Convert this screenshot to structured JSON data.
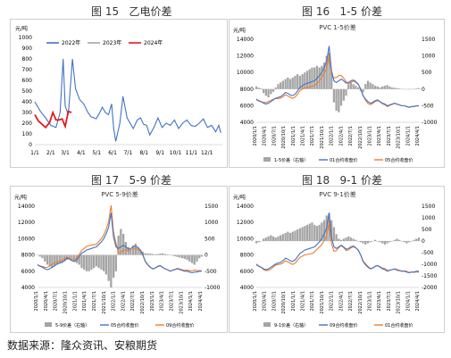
{
  "source_note": "数据来源：隆众资讯、安粮期货",
  "figures": [
    {
      "number": "图 15",
      "caption": "乙电价差"
    },
    {
      "number": "图 16",
      "caption": "1-5 价差"
    },
    {
      "number": "图 17",
      "caption": "5-9 价差"
    },
    {
      "number": "图 18",
      "caption": "9-1 价差"
    }
  ],
  "colors": {
    "blue": "#4472c4",
    "gray": "#a5a5a5",
    "red": "#e31a1c",
    "orange": "#ed7d31"
  },
  "chart_data": [
    {
      "type": "line",
      "title": "",
      "ylabel": "元/吨",
      "ylim": [
        0,
        1000
      ],
      "yticks": [
        0,
        100,
        200,
        300,
        400,
        500,
        600,
        700,
        800,
        900,
        1000
      ],
      "xlim": [
        1,
        365
      ],
      "xticks": [
        {
          "pos": 1,
          "label": "1/1"
        },
        {
          "pos": 32,
          "label": "2/1"
        },
        {
          "pos": 60,
          "label": "3/1"
        },
        {
          "pos": 91,
          "label": "4/1"
        },
        {
          "pos": 121,
          "label": "5/1"
        },
        {
          "pos": 152,
          "label": "6/1"
        },
        {
          "pos": 182,
          "label": "7/1"
        },
        {
          "pos": 213,
          "label": "8/1"
        },
        {
          "pos": 244,
          "label": "9/1"
        },
        {
          "pos": 274,
          "label": "10/1"
        },
        {
          "pos": 305,
          "label": "11/1"
        },
        {
          "pos": 335,
          "label": "12/1"
        }
      ],
      "grid": false,
      "legend": "top-left",
      "series": [
        {
          "name": "2022年",
          "color": "#4472c4",
          "x": [
            1,
            12,
            22,
            32,
            42,
            50,
            56,
            60,
            66,
            74,
            80,
            88,
            96,
            104,
            110,
            116,
            120,
            126,
            132,
            138,
            144,
            150,
            154,
            158,
            166,
            172,
            180,
            186,
            192,
            200,
            206,
            212,
            218,
            224,
            232,
            240,
            248,
            256,
            264,
            272,
            280,
            288,
            296,
            304,
            312,
            320,
            328,
            336,
            344,
            352,
            358,
            362
          ],
          "y": [
            400,
            310,
            250,
            180,
            160,
            300,
            800,
            360,
            280,
            800,
            520,
            420,
            380,
            300,
            260,
            250,
            240,
            290,
            350,
            300,
            280,
            380,
            150,
            30,
            200,
            450,
            250,
            200,
            150,
            230,
            250,
            190,
            180,
            90,
            160,
            250,
            160,
            200,
            180,
            230,
            150,
            200,
            230,
            180,
            170,
            200,
            240,
            160,
            180,
            120,
            180,
            110
          ]
        },
        {
          "name": "2023年",
          "color": "#a5a5a5",
          "x": [],
          "y": []
        },
        {
          "name": "2024年",
          "color": "#e31a1c",
          "x": [
            1,
            8,
            15,
            22,
            30,
            36,
            42,
            48,
            54,
            60,
            66,
            72
          ],
          "y": [
            280,
            220,
            190,
            160,
            210,
            300,
            230,
            230,
            240,
            170,
            310,
            300
          ]
        }
      ]
    },
    {
      "type": "line",
      "title": "PVC 1-5价差",
      "ylabel": "元/吨",
      "ylim": [
        4000,
        14000
      ],
      "yticks": [
        4000,
        6000,
        8000,
        10000,
        12000,
        14000
      ],
      "y2lim": [
        -1000,
        1500
      ],
      "y2ticks": [
        -1000,
        -500,
        0,
        500,
        1000,
        1500
      ],
      "xticks": [
        "2020/1/1",
        "2020/4/1",
        "2020/7/1",
        "2020/10/1",
        "2021/1/1",
        "2021/4/1",
        "2021/7/1",
        "2021/10/1",
        "2022/1/1",
        "2022/4/1",
        "2022/7/1",
        "2022/10/1",
        "2023/1/1",
        "2023/4/1",
        "2023/7/1",
        "2023/10/1",
        "2024/1/1",
        "2024/4/1"
      ],
      "legend": "bottom",
      "series_names": [
        "1-5价差（右轴）",
        "01合约收盘价",
        "05合约收盘价"
      ],
      "series_colors": [
        "#a5a5a5",
        "#4472c4",
        "#ed7d31"
      ],
      "price": [
        6800,
        6600,
        6500,
        6300,
        6200,
        6300,
        6500,
        6700,
        6900,
        7000,
        7100,
        7300,
        7600,
        7500,
        7300,
        7200,
        7400,
        7800,
        8200,
        8400,
        8600,
        8700,
        8800,
        8900,
        9000,
        9300,
        9600,
        10000,
        10600,
        11400,
        13200,
        10200,
        9000,
        8800,
        9000,
        9200,
        9000,
        8700,
        8800,
        9000,
        9100,
        8900,
        8600,
        8000,
        7200,
        6800,
        6500,
        6300,
        6400,
        6600,
        6700,
        6500,
        6300,
        6200,
        6000,
        6100,
        6200,
        6300,
        6200,
        6100,
        6000,
        6000,
        5900,
        5800,
        5900,
        5900,
        6000,
        6000
      ],
      "spread": [
        80,
        40,
        20,
        -120,
        -200,
        -250,
        -150,
        -80,
        50,
        150,
        200,
        250,
        300,
        350,
        300,
        350,
        400,
        450,
        400,
        450,
        500,
        550,
        600,
        650,
        650,
        700,
        650,
        700,
        800,
        1000,
        1100,
        500,
        -400,
        -650,
        -700,
        -500,
        -350,
        -200,
        150,
        200,
        150,
        100,
        50,
        -50,
        -100,
        150,
        250,
        200,
        150,
        100,
        80,
        50,
        80,
        100,
        120,
        80,
        50,
        40,
        30,
        20,
        10,
        0,
        0,
        -10,
        0,
        0,
        20,
        30
      ]
    },
    {
      "type": "line",
      "title": "PVC 5-9价差",
      "ylabel": "元/吨",
      "ylim": [
        4000,
        14000
      ],
      "yticks": [
        4000,
        6000,
        8000,
        10000,
        12000,
        14000
      ],
      "y2lim": [
        -1000,
        1500
      ],
      "y2ticks": [
        -1000,
        -500,
        0,
        500,
        1000,
        1500
      ],
      "xticks": [
        "2020/1/1",
        "2020/4/1",
        "2020/7/1",
        "2020/10/1",
        "2021/1/1",
        "2021/4/1",
        "2021/7/1",
        "2021/10/1",
        "2022/1/1",
        "2022/4/1",
        "2022/7/1",
        "2022/10/1",
        "2023/1/1",
        "2023/4/1",
        "2023/7/1",
        "2023/10/1",
        "2024/1/1",
        "2024/4/1"
      ],
      "legend": "bottom",
      "series_names": [
        "5-9价差（右轴）",
        "05合约收盘价",
        "09合约收盘价"
      ],
      "series_colors": [
        "#a5a5a5",
        "#4472c4",
        "#ed7d31"
      ],
      "price": [
        6800,
        6600,
        6500,
        6300,
        6200,
        6300,
        6500,
        6700,
        6900,
        7000,
        7100,
        7300,
        7600,
        7500,
        7300,
        7200,
        7400,
        7800,
        8200,
        8400,
        8600,
        8700,
        8800,
        8900,
        9000,
        9300,
        9600,
        10000,
        10600,
        11400,
        13200,
        10200,
        9000,
        8800,
        9000,
        9200,
        9000,
        8700,
        8800,
        9000,
        9100,
        8900,
        8600,
        8000,
        7200,
        6800,
        6500,
        6300,
        6400,
        6600,
        6700,
        6500,
        6300,
        6200,
        6000,
        6100,
        6200,
        6300,
        6200,
        6100,
        6000,
        6000,
        5900,
        5800,
        5900,
        5900,
        6000,
        6000
      ],
      "spread": [
        0,
        -50,
        -100,
        -200,
        -300,
        -350,
        -400,
        -350,
        -300,
        -250,
        -250,
        -200,
        -150,
        -100,
        -150,
        -200,
        -250,
        -300,
        -400,
        -450,
        -500,
        -500,
        -450,
        -400,
        -350,
        -400,
        -450,
        -500,
        -600,
        -800,
        -1000,
        -700,
        -500,
        600,
        800,
        650,
        400,
        250,
        150,
        300,
        350,
        250,
        150,
        100,
        50,
        50,
        40,
        30,
        20,
        30,
        40,
        50,
        30,
        20,
        0,
        -20,
        -40,
        -60,
        -80,
        -100,
        -120,
        -150,
        -200,
        -250,
        -300,
        -200,
        -100,
        -50
      ]
    },
    {
      "type": "line",
      "title": "PVC 9-1价差",
      "ylabel": "元/吨",
      "ylim": [
        4000,
        14000
      ],
      "yticks": [
        4000,
        6000,
        8000,
        10000,
        12000,
        14000
      ],
      "y2lim": [
        -2000,
        1500
      ],
      "y2ticks": [
        -2000,
        -1500,
        -1000,
        -500,
        0,
        500,
        1000,
        1500
      ],
      "xticks": [
        "2020/1/1",
        "2020/4/1",
        "2020/7/1",
        "2020/10/1",
        "2021/1/1",
        "2021/4/1",
        "2021/7/1",
        "2021/10/1",
        "2022/1/1",
        "2022/4/1",
        "2022/7/1",
        "2022/10/1",
        "2023/1/1",
        "2023/4/1",
        "2023/7/1",
        "2023/10/1",
        "2024/1/1",
        "2024/4/1"
      ],
      "legend": "bottom",
      "series_names": [
        "9-1价差（右轴）",
        "09合约收盘价",
        "01合约收盘价"
      ],
      "series_colors": [
        "#a5a5a5",
        "#4472c4",
        "#ed7d31"
      ],
      "price": [
        6800,
        6600,
        6500,
        6300,
        6200,
        6300,
        6500,
        6700,
        6900,
        7000,
        7100,
        7300,
        7600,
        7500,
        7300,
        7200,
        7400,
        7800,
        8200,
        8400,
        8600,
        8700,
        8800,
        8900,
        9000,
        9300,
        9600,
        10000,
        10600,
        11400,
        13200,
        10200,
        9000,
        8800,
        9000,
        9200,
        9000,
        8700,
        8800,
        9000,
        9100,
        8900,
        8600,
        8000,
        7200,
        6800,
        6500,
        6300,
        6400,
        6600,
        6700,
        6500,
        6300,
        6200,
        6000,
        6100,
        6200,
        6300,
        6200,
        6100,
        6000,
        6000,
        5900,
        5800,
        5900,
        5900,
        6000,
        6000
      ],
      "spread": [
        -100,
        -50,
        0,
        100,
        150,
        200,
        250,
        200,
        150,
        200,
        250,
        300,
        350,
        400,
        350,
        400,
        450,
        500,
        550,
        600,
        650,
        700,
        750,
        800,
        700,
        650,
        700,
        800,
        900,
        1100,
        1200,
        900,
        600,
        300,
        100,
        50,
        100,
        150,
        200,
        150,
        100,
        50,
        0,
        -50,
        -100,
        -150,
        -100,
        -50,
        0,
        50,
        0,
        -50,
        -100,
        -150,
        -100,
        -50,
        0,
        50,
        100,
        50,
        0,
        -50,
        -100,
        -50,
        0,
        50,
        100,
        150
      ]
    }
  ]
}
